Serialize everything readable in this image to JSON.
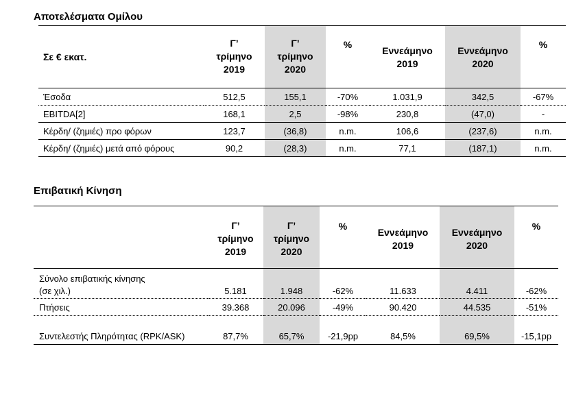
{
  "group_results": {
    "title": "Αποτελέσματα Ομίλου",
    "unit_label": "Σε € εκατ.",
    "columns": [
      {
        "lines": [
          "Γ’",
          "τρίμηνο",
          "2019"
        ]
      },
      {
        "lines": [
          "Γ’",
          "τρίμηνο",
          "2020"
        ]
      },
      {
        "lines": [
          "%"
        ]
      },
      {
        "lines": [
          "Εννεάμηνο",
          "2019"
        ]
      },
      {
        "lines": [
          "Εννεάμηνο",
          "2020"
        ]
      },
      {
        "lines": [
          "%"
        ]
      }
    ],
    "rows": [
      {
        "label": "Έσοδα",
        "values": [
          "512,5",
          "155,1",
          "-70%",
          "1.031,9",
          "342,5",
          "-67%"
        ]
      },
      {
        "label": "EBITDA[2]",
        "values": [
          "168,1",
          "2,5",
          "-98%",
          "230,8",
          "(47,0)",
          "-"
        ]
      },
      {
        "label": "Κέρδη/ (ζημιές) προ φόρων",
        "values": [
          "123,7",
          "(36,8)",
          "n.m.",
          "106,6",
          "(237,6)",
          "n.m."
        ]
      },
      {
        "label": "Κέρδη/ (ζημιές) μετά από φόρους",
        "values": [
          "90,2",
          "(28,3)",
          "n.m.",
          "77,1",
          "(187,1)",
          "n.m."
        ]
      }
    ]
  },
  "passenger_traffic": {
    "title": "Επιβατική Κίνηση",
    "columns": [
      {
        "lines": [
          "Γ’",
          "τρίμηνο",
          "2019"
        ]
      },
      {
        "lines": [
          "Γ’",
          "τρίμηνο",
          "2020"
        ]
      },
      {
        "lines": [
          "%"
        ]
      },
      {
        "lines": [
          "Εννεάμηνο",
          "2019"
        ]
      },
      {
        "lines": [
          "Εννεάμηνο",
          "2020"
        ]
      },
      {
        "lines": [
          "%"
        ]
      }
    ],
    "rows": [
      {
        "label_line1": "Σύνολο επιβατικής κίνησης",
        "label_line2": "(σε χιλ.)",
        "values": [
          "5.181",
          "1.948",
          "-62%",
          "11.633",
          "4.411",
          "-62%"
        ]
      },
      {
        "label": "Πτήσεις",
        "values": [
          "39.368",
          "20.096",
          "-49%",
          "90.420",
          "44.535",
          "-51%"
        ]
      },
      {
        "label": "Συντελεστής Πληρότητας (RPK/ASK)",
        "values": [
          "87,7%",
          "65,7%",
          "-21,9pp",
          "84,5%",
          "69,5%",
          "-15,1pp"
        ]
      }
    ]
  }
}
